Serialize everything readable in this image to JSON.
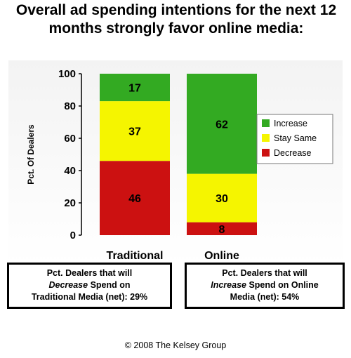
{
  "title": {
    "line1": "Overall ad spending intentions for the next 12",
    "line2": "months strongly favor online media:"
  },
  "chart_data": {
    "type": "bar",
    "stacked": true,
    "categories": [
      "Traditional",
      "Online"
    ],
    "series": [
      {
        "name": "Decrease",
        "values": [
          46,
          8
        ],
        "color": "#cc1111"
      },
      {
        "name": "Stay Same",
        "values": [
          37,
          30
        ],
        "color": "#f5f500"
      },
      {
        "name": "Increase",
        "values": [
          17,
          62
        ],
        "color": "#33aa22"
      }
    ],
    "ylabel": "Pct. Of Dealers",
    "ylim": [
      0,
      100
    ],
    "yticks": [
      "0",
      "20",
      "40",
      "60",
      "80",
      "100"
    ],
    "legend_order": [
      "Increase",
      "Stay Same",
      "Decrease"
    ],
    "legend_position": "right"
  },
  "callouts": {
    "left": {
      "line1": "Pct. Dealers that will",
      "emph": "Decrease",
      "line2_rest": " Spend on",
      "line3": "Traditional Media (net): 29%"
    },
    "right": {
      "line1": "Pct. Dealers that will",
      "emph": "Increase",
      "line2_rest": " Spend on Online",
      "line3": "Media (net): 54%"
    }
  },
  "copyright": "© 2008 The Kelsey Group"
}
